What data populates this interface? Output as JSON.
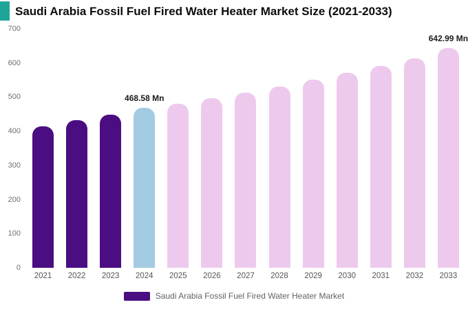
{
  "title": "Saudi Arabia Fossil Fuel Fired Water Heater Market Size (2021-2033)",
  "accent_color": "#1fa598",
  "legend": {
    "label": "Saudi Arabia Fossil Fuel Fired Water Heater Market",
    "swatch_color": "#4a0d82"
  },
  "chart_data": {
    "type": "bar",
    "title": "Saudi Arabia Fossil Fuel Fired Water Heater Market Size (2021-2033)",
    "categories": [
      "2021",
      "2022",
      "2023",
      "2024",
      "2025",
      "2026",
      "2027",
      "2028",
      "2029",
      "2030",
      "2031",
      "2032",
      "2033"
    ],
    "values": [
      415,
      432,
      448,
      468.58,
      480,
      496,
      513,
      531,
      551,
      571,
      591,
      614,
      642.99
    ],
    "bar_colors": [
      "#4a0d82",
      "#4a0d82",
      "#4a0d82",
      "#a3cbe1",
      "#edcaed",
      "#edcaed",
      "#edcaed",
      "#edcaed",
      "#edcaed",
      "#edcaed",
      "#edcaed",
      "#edcaed",
      "#edcaed"
    ],
    "unit": "Mn",
    "ylim": [
      0,
      700
    ],
    "yticks": [
      0,
      100,
      200,
      300,
      400,
      500,
      600,
      700
    ],
    "annotations": [
      {
        "category": "2024",
        "text": "468.58 Mn"
      },
      {
        "category": "2033",
        "text": "642.99 Mn"
      }
    ],
    "grid": false,
    "legend_position": "bottom",
    "xlabel": "",
    "ylabel": ""
  }
}
